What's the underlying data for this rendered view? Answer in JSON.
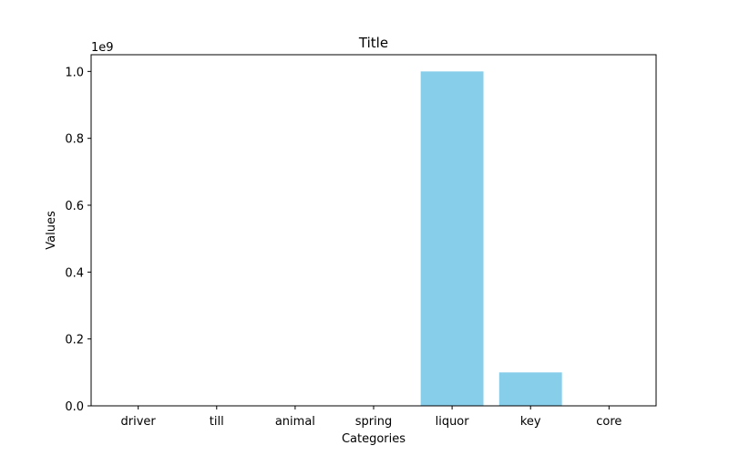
{
  "chart_data": {
    "type": "bar",
    "title": "Title",
    "xlabel": "Categories",
    "ylabel": "Values",
    "categories": [
      "driver",
      "till",
      "animal",
      "spring",
      "liquor",
      "key",
      "core"
    ],
    "values": [
      1000,
      10000,
      100,
      1000,
      1000000000,
      100000000,
      10
    ],
    "ylim": [
      0,
      1050000000
    ],
    "y_ticks": [
      0,
      200000000,
      400000000,
      600000000,
      800000000,
      1000000000
    ],
    "y_tick_labels": [
      "0.0",
      "0.2",
      "0.4",
      "0.6",
      "0.8",
      "1.0"
    ],
    "y_offset_label": "1e9",
    "bar_color": "#87CEEB",
    "grid": false,
    "legend": "none"
  }
}
